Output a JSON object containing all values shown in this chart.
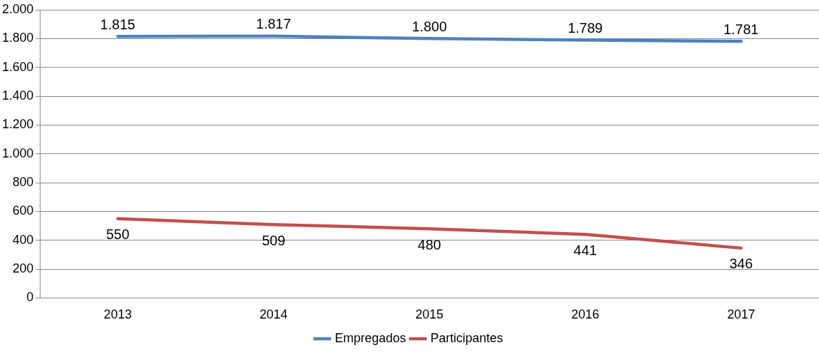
{
  "chart_data": {
    "type": "line",
    "categories": [
      "2013",
      "2014",
      "2015",
      "2016",
      "2017"
    ],
    "series": [
      {
        "name": "Empregados",
        "color": "#4f81bd",
        "values": [
          1815,
          1817,
          1800,
          1789,
          1781
        ],
        "value_labels": [
          "1.815",
          "1.817",
          "1.800",
          "1.789",
          "1.781"
        ]
      },
      {
        "name": "Participantes",
        "color": "#c0504d",
        "values": [
          550,
          509,
          480,
          441,
          346
        ],
        "value_labels": [
          "550",
          "509",
          "480",
          "441",
          "346"
        ]
      }
    ],
    "ylim": [
      0,
      2000
    ],
    "yticks": [
      0,
      200,
      400,
      600,
      800,
      {
        "value": 1000,
        "label": "1.000"
      },
      {
        "value": 1200,
        "label": "1.200"
      },
      {
        "value": 1400,
        "label": "1.400"
      },
      {
        "value": 1600,
        "label": "1.600"
      },
      {
        "value": 1800,
        "label": "1.800"
      },
      {
        "value": 2000,
        "label": "2.000"
      }
    ],
    "grid": "y",
    "legend": "bottom",
    "marker": "none",
    "line_style": "solid"
  }
}
